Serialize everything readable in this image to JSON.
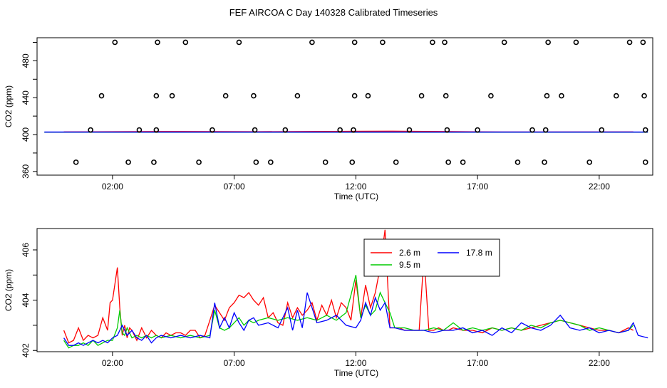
{
  "title": "FEF AIRCOA C  Day 140328  Calibrated Timeseries",
  "chart_data": [
    {
      "type": "scatter",
      "xlabel": "Time (UTC)",
      "ylabel": "CO2 (ppm)",
      "xlim": [
        -1.1,
        24.2
      ],
      "ylim": [
        356,
        505
      ],
      "xticks": [
        2,
        7,
        12,
        17,
        22
      ],
      "xtick_labels": [
        "02:00",
        "07:00",
        "12:00",
        "17:00",
        "22:00"
      ],
      "yticks": [
        360,
        400,
        440,
        480
      ],
      "ytick_labels": [
        "360",
        "400",
        "440",
        "480"
      ],
      "ytick_minor": [
        380,
        420,
        460,
        500
      ],
      "points": [
        [
          0.5,
          370
        ],
        [
          1.1,
          405
        ],
        [
          1.55,
          442
        ],
        [
          2.1,
          500
        ],
        [
          2.65,
          370
        ],
        [
          3.1,
          405
        ],
        [
          3.7,
          370
        ],
        [
          3.8,
          405
        ],
        [
          3.8,
          442
        ],
        [
          3.85,
          500
        ],
        [
          4.45,
          442
        ],
        [
          5.0,
          500
        ],
        [
          5.55,
          370
        ],
        [
          6.1,
          405
        ],
        [
          6.65,
          442
        ],
        [
          7.2,
          500
        ],
        [
          7.8,
          442
        ],
        [
          7.85,
          405
        ],
        [
          7.9,
          370
        ],
        [
          8.5,
          370
        ],
        [
          9.1,
          405
        ],
        [
          9.6,
          442
        ],
        [
          10.2,
          500
        ],
        [
          10.75,
          370
        ],
        [
          11.35,
          405
        ],
        [
          11.85,
          370
        ],
        [
          11.9,
          405
        ],
        [
          11.95,
          442
        ],
        [
          11.95,
          500
        ],
        [
          12.5,
          442
        ],
        [
          13.1,
          500
        ],
        [
          13.65,
          370
        ],
        [
          14.2,
          405
        ],
        [
          14.7,
          442
        ],
        [
          15.15,
          500
        ],
        [
          15.65,
          500
        ],
        [
          15.7,
          442
        ],
        [
          15.75,
          405
        ],
        [
          15.8,
          370
        ],
        [
          16.4,
          370
        ],
        [
          17.0,
          405
        ],
        [
          17.55,
          442
        ],
        [
          18.1,
          500
        ],
        [
          18.65,
          370
        ],
        [
          19.25,
          405
        ],
        [
          19.75,
          370
        ],
        [
          19.8,
          405
        ],
        [
          19.85,
          442
        ],
        [
          19.9,
          500
        ],
        [
          20.45,
          442
        ],
        [
          21.05,
          500
        ],
        [
          21.6,
          370
        ],
        [
          22.1,
          405
        ],
        [
          22.7,
          442
        ],
        [
          23.25,
          500
        ],
        [
          23.8,
          500
        ],
        [
          23.85,
          442
        ],
        [
          23.9,
          405
        ],
        [
          23.9,
          370
        ]
      ],
      "lines_y": 402.5
    },
    {
      "type": "line",
      "xlabel": "Time (UTC)",
      "ylabel": "CO2 (ppm)",
      "xlim": [
        -1.1,
        24.2
      ],
      "ylim": [
        401.95,
        406.85
      ],
      "xticks": [
        2,
        7,
        12,
        17,
        22
      ],
      "xtick_labels": [
        "02:00",
        "07:00",
        "12:00",
        "17:00",
        "22:00"
      ],
      "yticks": [
        402,
        404,
        406
      ],
      "ytick_labels": [
        "402",
        "404",
        "406"
      ],
      "ytick_minor": [
        403,
        405
      ],
      "legend_position": "top-center",
      "series": [
        {
          "name": "2.6 m",
          "color": "#ff0000",
          "x": [
            0,
            0.2,
            0.4,
            0.6,
            0.8,
            1.0,
            1.2,
            1.4,
            1.6,
            1.8,
            1.9,
            2.0,
            2.2,
            2.3,
            2.4,
            2.5,
            2.6,
            2.7,
            2.8,
            3.0,
            3.2,
            3.4,
            3.6,
            3.8,
            4.0,
            4.2,
            4.4,
            4.6,
            4.8,
            5.0,
            5.2,
            5.4,
            5.6,
            5.8,
            6.0,
            6.2,
            6.4,
            6.6,
            6.8,
            7.0,
            7.2,
            7.4,
            7.6,
            7.8,
            8.0,
            8.2,
            8.4,
            8.6,
            8.8,
            9.0,
            9.2,
            9.4,
            9.6,
            9.8,
            10.0,
            10.2,
            10.4,
            10.6,
            10.8,
            11.0,
            11.2,
            11.4,
            11.6,
            11.8,
            12.0,
            12.2,
            12.4,
            12.6,
            12.8,
            13.0,
            13.2,
            13.4,
            13.6,
            13.8,
            14.0,
            14.2,
            14.4,
            14.6,
            14.8,
            15.0,
            15.2,
            15.4,
            15.6,
            15.8,
            16.0,
            16.4,
            16.8,
            17.2,
            17.6,
            18.0,
            18.4,
            18.8,
            19.2,
            19.6,
            20.0,
            20.4,
            20.8,
            21.2,
            21.6,
            22.0,
            22.4,
            22.8,
            23.2,
            23.4
          ],
          "values": [
            402.8,
            402.3,
            402.4,
            402.9,
            402.4,
            402.6,
            402.5,
            402.6,
            403.3,
            402.8,
            403.9,
            404.0,
            405.3,
            403.7,
            402.6,
            403.0,
            402.5,
            402.9,
            402.8,
            402.4,
            402.9,
            402.5,
            402.8,
            402.6,
            402.5,
            402.7,
            402.6,
            402.7,
            402.7,
            402.6,
            402.8,
            402.8,
            402.5,
            402.6,
            403.2,
            403.8,
            403.5,
            403.2,
            403.7,
            403.9,
            404.2,
            404.1,
            404.3,
            404.0,
            403.8,
            404.1,
            403.3,
            403.5,
            403.1,
            403.0,
            403.9,
            403.3,
            403.7,
            403.4,
            403.6,
            403.9,
            403.2,
            403.8,
            403.4,
            404.0,
            403.3,
            403.9,
            403.7,
            403.2,
            404.8,
            403.3,
            404.6,
            403.7,
            404.3,
            405.3,
            406.8,
            402.9,
            402.9,
            402.9,
            402.8,
            402.8,
            402.8,
            402.8,
            405.8,
            402.8,
            402.8,
            402.9,
            402.8,
            402.8,
            402.9,
            402.8,
            402.8,
            402.7,
            402.9,
            402.8,
            402.9,
            402.8,
            402.9,
            403.0,
            403.1,
            403.2,
            403.1,
            403.0,
            402.9,
            402.8,
            402.8,
            402.7,
            402.9,
            402.8
          ]
        },
        {
          "name": "9.5 m",
          "color": "#00cc00",
          "x": [
            0,
            0.2,
            0.4,
            0.6,
            0.8,
            1.0,
            1.2,
            1.4,
            1.6,
            1.8,
            2.0,
            2.2,
            2.3,
            2.4,
            2.5,
            2.6,
            2.8,
            3.0,
            3.2,
            3.4,
            3.6,
            3.8,
            4.0,
            4.4,
            4.8,
            5.2,
            5.6,
            6.0,
            6.2,
            6.4,
            6.6,
            6.8,
            7.0,
            7.2,
            7.4,
            7.6,
            7.8,
            8.0,
            8.4,
            8.8,
            9.2,
            9.6,
            10.0,
            10.4,
            10.8,
            11.2,
            11.6,
            11.8,
            12.0,
            12.2,
            12.4,
            12.6,
            12.8,
            13.0,
            13.2,
            13.4,
            13.6,
            14.0,
            14.4,
            14.8,
            15.2,
            15.6,
            16.0,
            16.4,
            16.8,
            17.2,
            17.6,
            18.0,
            18.4,
            18.8,
            19.2,
            19.6,
            20.0,
            20.4,
            20.8,
            21.2,
            21.6,
            22.0,
            22.4,
            22.8,
            23.2,
            23.4
          ],
          "values": [
            402.4,
            402.1,
            402.2,
            402.2,
            402.3,
            402.2,
            402.4,
            402.2,
            402.3,
            402.4,
            402.4,
            402.9,
            403.6,
            402.7,
            402.6,
            402.9,
            402.5,
            402.6,
            402.5,
            402.6,
            402.5,
            402.6,
            402.5,
            402.6,
            402.5,
            402.6,
            402.5,
            402.6,
            403.6,
            402.9,
            402.8,
            402.9,
            403.1,
            403.3,
            403.0,
            403.2,
            403.1,
            403.2,
            403.3,
            403.2,
            403.3,
            403.2,
            403.3,
            403.2,
            403.4,
            403.2,
            403.5,
            404.2,
            405.0,
            403.3,
            403.8,
            403.4,
            403.6,
            404.3,
            403.9,
            403.5,
            402.9,
            402.9,
            402.8,
            402.8,
            402.9,
            402.8,
            403.1,
            402.8,
            402.9,
            402.8,
            402.9,
            402.8,
            402.9,
            402.8,
            403.0,
            402.9,
            403.1,
            403.2,
            403.1,
            403.0,
            402.8,
            402.9,
            402.8,
            402.7,
            402.8,
            403.0
          ]
        },
        {
          "name": "17.8 m",
          "color": "#0000ff",
          "x": [
            0,
            0.2,
            0.4,
            0.6,
            0.8,
            1.0,
            1.2,
            1.4,
            1.6,
            1.8,
            2.0,
            2.2,
            2.4,
            2.6,
            2.8,
            3.0,
            3.2,
            3.4,
            3.6,
            3.8,
            4.0,
            4.4,
            4.8,
            5.2,
            5.6,
            6.0,
            6.2,
            6.4,
            6.6,
            6.8,
            7.0,
            7.2,
            7.4,
            7.6,
            7.8,
            8.0,
            8.4,
            8.8,
            9.2,
            9.4,
            9.6,
            9.8,
            10.0,
            10.4,
            10.8,
            11.2,
            11.6,
            12.0,
            12.2,
            12.4,
            12.6,
            12.8,
            13.0,
            13.2,
            13.4,
            13.6,
            14.0,
            14.4,
            14.8,
            15.2,
            15.6,
            16.0,
            16.4,
            16.8,
            17.2,
            17.6,
            18.0,
            18.4,
            18.8,
            19.2,
            19.6,
            20.0,
            20.4,
            20.8,
            21.2,
            21.6,
            22.0,
            22.4,
            22.8,
            23.2,
            23.4,
            23.6,
            24.0
          ],
          "values": [
            402.5,
            402.2,
            402.2,
            402.3,
            402.2,
            402.3,
            402.4,
            402.3,
            402.4,
            402.3,
            402.5,
            402.6,
            403.0,
            402.6,
            402.8,
            402.5,
            402.4,
            402.6,
            402.3,
            402.5,
            402.6,
            402.5,
            402.6,
            402.5,
            402.6,
            402.5,
            403.9,
            402.9,
            403.3,
            402.9,
            403.5,
            403.1,
            402.8,
            403.2,
            403.3,
            403.0,
            403.1,
            402.9,
            403.7,
            402.8,
            403.6,
            402.9,
            404.3,
            403.1,
            403.2,
            403.4,
            403.0,
            402.9,
            403.2,
            403.9,
            403.4,
            404.1,
            403.6,
            403.9,
            402.9,
            402.9,
            402.8,
            402.8,
            402.8,
            402.7,
            402.8,
            402.8,
            402.9,
            402.7,
            402.8,
            402.6,
            402.9,
            402.7,
            403.1,
            402.9,
            402.8,
            403.0,
            403.4,
            402.9,
            402.8,
            402.9,
            402.7,
            402.8,
            402.7,
            402.8,
            403.1,
            402.6,
            402.5
          ]
        }
      ]
    }
  ]
}
